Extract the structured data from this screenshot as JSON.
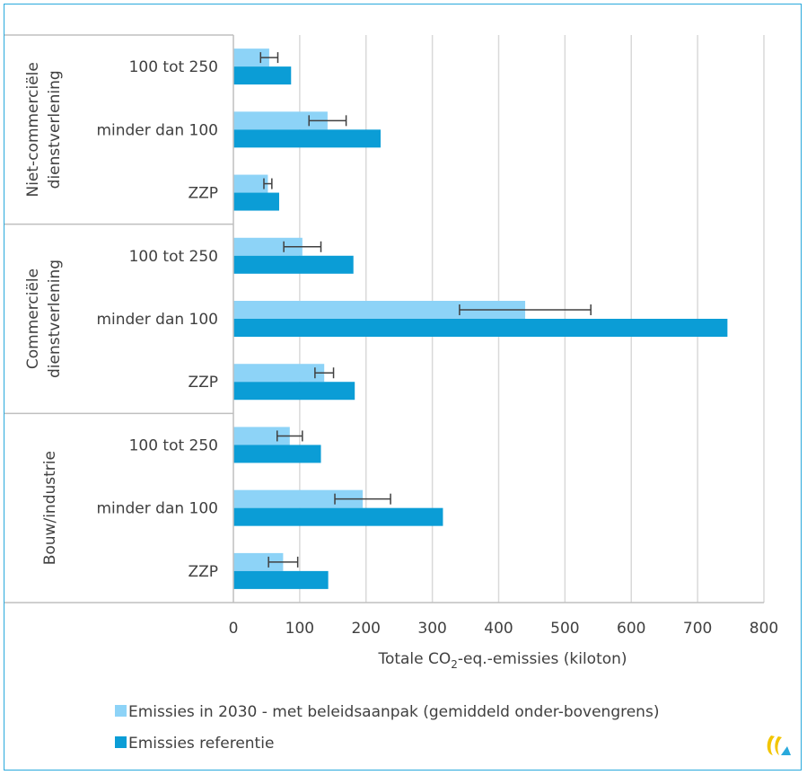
{
  "chart_data": {
    "type": "bar",
    "orientation": "horizontal",
    "xlabel": "Totale CO",
    "xlabel_sub": "2",
    "xlabel_rest": "-eq.-emissies (kiloton)",
    "xlim": [
      0,
      800
    ],
    "xticks": [
      0,
      100,
      200,
      300,
      400,
      500,
      600,
      700,
      800
    ],
    "grid": true,
    "legend_position": "bottom",
    "groups": [
      {
        "label_lines": [
          "Niet-commerciële",
          "dienstverlening"
        ],
        "categories": [
          "100 tot 250",
          "minder dan 100",
          "ZZP"
        ]
      },
      {
        "label_lines": [
          "Commerciële",
          "dienstverlening"
        ],
        "categories": [
          "100 tot 250",
          "minder dan 100",
          "ZZP"
        ]
      },
      {
        "label_lines": [
          "Bouw/industrie"
        ],
        "categories": [
          "100 tot 250",
          "minder dan 100",
          "ZZP"
        ]
      }
    ],
    "series": [
      {
        "name": "Emissies in 2030 - met beleidsaanpak (gemiddeld onder-bovengrens)",
        "color": "#8dd3f7",
        "values": [
          54,
          142,
          52,
          104,
          440,
          137,
          85,
          195,
          75
        ],
        "error_low": [
          41,
          114,
          46,
          76,
          341,
          123,
          66,
          153,
          53
        ],
        "error_high": [
          67,
          170,
          58,
          132,
          539,
          151,
          104,
          237,
          97
        ]
      },
      {
        "name": "Emissies referentie",
        "color": "#0b9dd6",
        "values": [
          87,
          222,
          69,
          181,
          745,
          183,
          132,
          316,
          143
        ]
      }
    ]
  },
  "colors": {
    "frame": "#29a9dc",
    "grid": "#d9d9d9",
    "axis": "#bfbfbf",
    "error_bar": "#404040"
  },
  "logo_icon": "pbl-logo-icon"
}
